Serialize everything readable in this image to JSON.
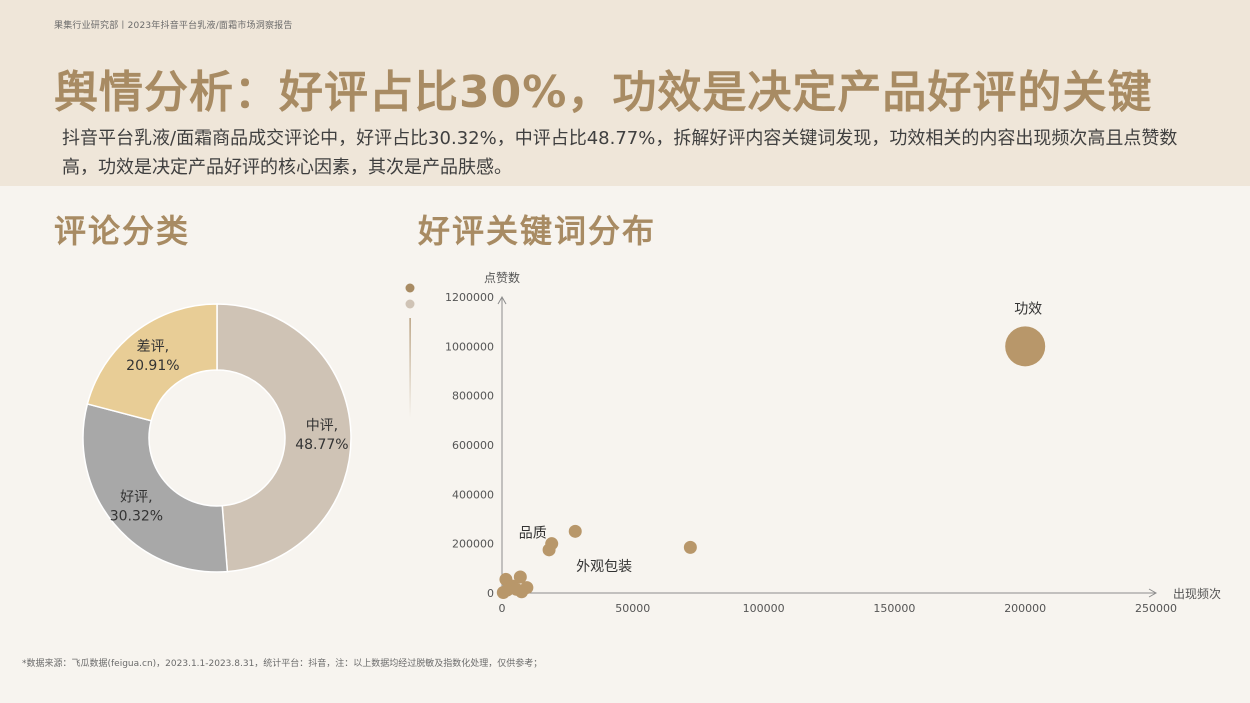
{
  "header": {
    "source": "果集行业研究部丨2023年抖音平台乳液/面霜市场洞察报告",
    "title": "舆情分析：好评占比30%，功效是决定产品好评的关键",
    "subtitle": "抖音平台乳液/面霜商品成交评论中，好评占比30.32%，中评占比48.77%，拆解好评内容关键词发现，功效相关的内容出现频次高且点赞数高，功效是决定产品好评的核心因素，其次是产品肤感。"
  },
  "sections": {
    "left_title": "评论分类",
    "right_title": "好评关键词分布"
  },
  "footnote": "*数据来源：飞瓜数据(feigua.cn)，2023.1.1-2023.8.31，统计平台：抖音，注：以上数据均经过脱敏及指数化处理，仅供参考；",
  "chart_data": [
    {
      "type": "pie",
      "donut": true,
      "slices": [
        {
          "label": "中评",
          "value": 48.77,
          "display": "48.77%",
          "color": "#cfc3b5"
        },
        {
          "label": "好评",
          "value": 30.32,
          "display": "30.32%",
          "color": "#a8a8a8"
        },
        {
          "label": "差评",
          "value": 20.91,
          "display": "20.91%",
          "color": "#e8cd96"
        }
      ]
    },
    {
      "type": "scatter",
      "xlabel": "出现频次",
      "ylabel": "点赞数",
      "xlim": [
        0,
        250000
      ],
      "ylim": [
        0,
        1200000
      ],
      "xticks": [
        "0",
        "50000",
        "100000",
        "150000",
        "200000",
        "250000"
      ],
      "yticks": [
        "0",
        "200000",
        "400000",
        "600000",
        "800000",
        "1000000",
        "1200000"
      ],
      "point_color": "#b8976a",
      "legend_colors": [
        "#a88b63",
        "#cfc3b5"
      ],
      "points": [
        {
          "x": 200000,
          "y": 1000000,
          "size": "large",
          "label": "功效"
        },
        {
          "x": 72000,
          "y": 185000,
          "size": "small",
          "label": ""
        },
        {
          "x": 28000,
          "y": 250000,
          "size": "small",
          "label": ""
        },
        {
          "x": 19000,
          "y": 200000,
          "size": "small",
          "label": "品质"
        },
        {
          "x": 18000,
          "y": 175000,
          "size": "small",
          "label": "外观包装"
        },
        {
          "x": 7000,
          "y": 65000,
          "size": "small",
          "label": ""
        },
        {
          "x": 1500,
          "y": 55000,
          "size": "small",
          "label": ""
        },
        {
          "x": 9500,
          "y": 22000,
          "size": "small",
          "label": ""
        },
        {
          "x": 7500,
          "y": 5000,
          "size": "small",
          "label": ""
        },
        {
          "x": 4000,
          "y": 28000,
          "size": "small",
          "label": ""
        },
        {
          "x": 2000,
          "y": 12000,
          "size": "small",
          "label": ""
        },
        {
          "x": 500,
          "y": 2000,
          "size": "small",
          "label": ""
        },
        {
          "x": 5500,
          "y": 15000,
          "size": "small",
          "label": ""
        }
      ]
    }
  ]
}
